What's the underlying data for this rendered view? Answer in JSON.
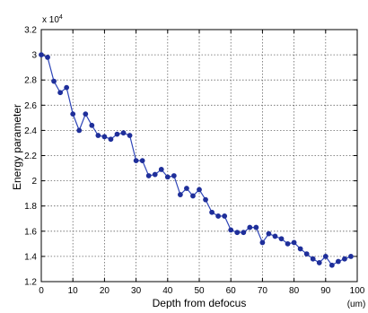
{
  "chart_data": {
    "type": "line",
    "title": "",
    "xlabel": "Depth from defocus",
    "ylabel": "Energy parameter",
    "xunit": "(um)",
    "yexponent_label": "x 10",
    "yexponent_power": "4",
    "xlim": [
      0,
      100
    ],
    "ylim": [
      1.2,
      3.2
    ],
    "xticks": [
      "0",
      "10",
      "20",
      "30",
      "40",
      "50",
      "60",
      "70",
      "80",
      "90",
      "100"
    ],
    "yticks": [
      "1.2",
      "1.4",
      "1.6",
      "1.8",
      "2",
      "2.2",
      "2.4",
      "2.6",
      "2.8",
      "3",
      "3.2"
    ],
    "grid": true,
    "colors": {
      "line": "#2f46b8",
      "marker": "#1f2f9a",
      "axis": "#000000",
      "grid": "#666666"
    },
    "x": [
      0,
      2,
      4,
      6,
      8,
      10,
      12,
      14,
      16,
      18,
      20,
      22,
      24,
      26,
      28,
      30,
      32,
      34,
      36,
      38,
      40,
      42,
      44,
      46,
      48,
      50,
      52,
      54,
      56,
      58,
      60,
      62,
      64,
      66,
      68,
      70,
      72,
      74,
      76,
      78,
      80,
      82,
      84,
      86,
      88,
      90,
      92,
      94,
      96,
      98
    ],
    "y": [
      3.0,
      2.98,
      2.79,
      2.7,
      2.74,
      2.53,
      2.4,
      2.53,
      2.44,
      2.36,
      2.35,
      2.33,
      2.37,
      2.38,
      2.36,
      2.16,
      2.16,
      2.04,
      2.05,
      2.09,
      2.03,
      2.04,
      1.89,
      1.94,
      1.88,
      1.93,
      1.85,
      1.75,
      1.72,
      1.72,
      1.61,
      1.59,
      1.59,
      1.63,
      1.63,
      1.51,
      1.58,
      1.56,
      1.54,
      1.5,
      1.51,
      1.46,
      1.42,
      1.38,
      1.35,
      1.4,
      1.33,
      1.36,
      1.38,
      1.4
    ]
  }
}
